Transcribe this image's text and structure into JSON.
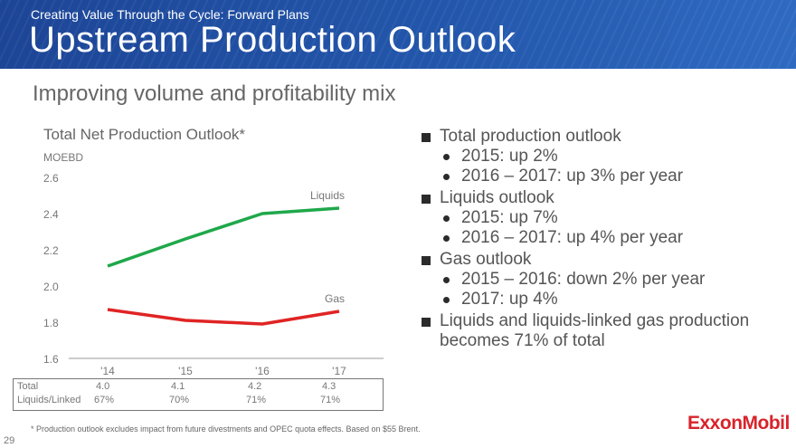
{
  "header": {
    "kicker": "Creating Value Through the Cycle: Forward Plans",
    "title": "Upstream Production Outlook"
  },
  "subtitle": "Improving volume and profitability mix",
  "chart_data": {
    "type": "line",
    "title": "Total Net Production Outlook*",
    "ylabel": "MOEBD",
    "categories": [
      "'14",
      "'15",
      "'16",
      "'17"
    ],
    "ylim": [
      1.6,
      2.6
    ],
    "yticks": [
      "2.6",
      "2.4",
      "2.2",
      "2.0",
      "1.8",
      "1.6"
    ],
    "grid": false,
    "series": [
      {
        "name": "Liquids",
        "values": [
          2.11,
          2.26,
          2.4,
          2.43
        ],
        "color": "#1fa84a"
      },
      {
        "name": "Gas",
        "values": [
          1.87,
          1.81,
          1.79,
          1.86
        ],
        "color": "#e02424"
      }
    ]
  },
  "table": {
    "rows": [
      {
        "label": "Total",
        "values": [
          "4.0",
          "4.1",
          "4.2",
          "4.3"
        ]
      },
      {
        "label": "Liquids/Linked",
        "values": [
          "67%",
          "70%",
          "71%",
          "71%"
        ]
      }
    ]
  },
  "bullets": [
    {
      "text": "Total production outlook",
      "sub": [
        "2015: up 2%",
        "2016 – 2017: up 3% per year"
      ]
    },
    {
      "text": "Liquids outlook",
      "sub": [
        "2015: up 7%",
        "2016 – 2017: up 4% per year"
      ]
    },
    {
      "text": "Gas outlook",
      "sub": [
        "2015 – 2016: down 2% per year",
        "2017: up 4%"
      ]
    },
    {
      "text": "Liquids and liquids-linked gas production becomes 71% of total",
      "sub": []
    }
  ],
  "footnote": "* Production outlook excludes impact from future divestments and OPEC quota effects.  Based on $55 Brent.",
  "page_number": "29",
  "logo": "ExxonMobil"
}
